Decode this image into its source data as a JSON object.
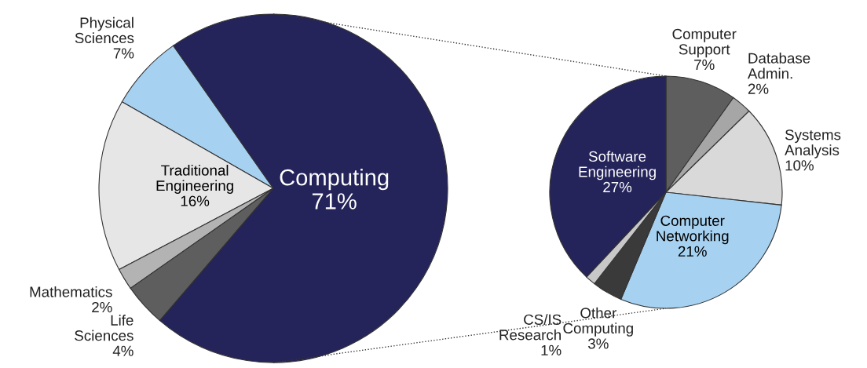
{
  "chart_data": [
    {
      "type": "pie",
      "categories": [
        "Physical Sciences",
        "Traditional Engineering",
        "Mathematics",
        "Life Sciences",
        "Computing"
      ],
      "values": [
        7,
        16,
        2,
        4,
        71
      ],
      "value_labels": [
        "7%",
        "16%",
        "2%",
        "4%",
        "71%"
      ],
      "colors": [
        "#a6d1f0",
        "#e6e6e6",
        "#b3b3b3",
        "#5e5e5e",
        "#24235a"
      ]
    },
    {
      "type": "pie",
      "categories": [
        "Computer Support",
        "Database Admin.",
        "Systems Analysis",
        "Computer Networking",
        "Other Computing",
        "CS/IS Research",
        "Software Engineering"
      ],
      "values": [
        7,
        2,
        10,
        21,
        3,
        1,
        27
      ],
      "value_labels": [
        "7%",
        "2%",
        "10%",
        "21%",
        "3%",
        "1%",
        "27%"
      ],
      "colors": [
        "#5e5e5e",
        "#a6a6a6",
        "#d9d9d9",
        "#a6d1f0",
        "#3a3a3a",
        "#c8c8c8",
        "#24235a"
      ]
    }
  ]
}
